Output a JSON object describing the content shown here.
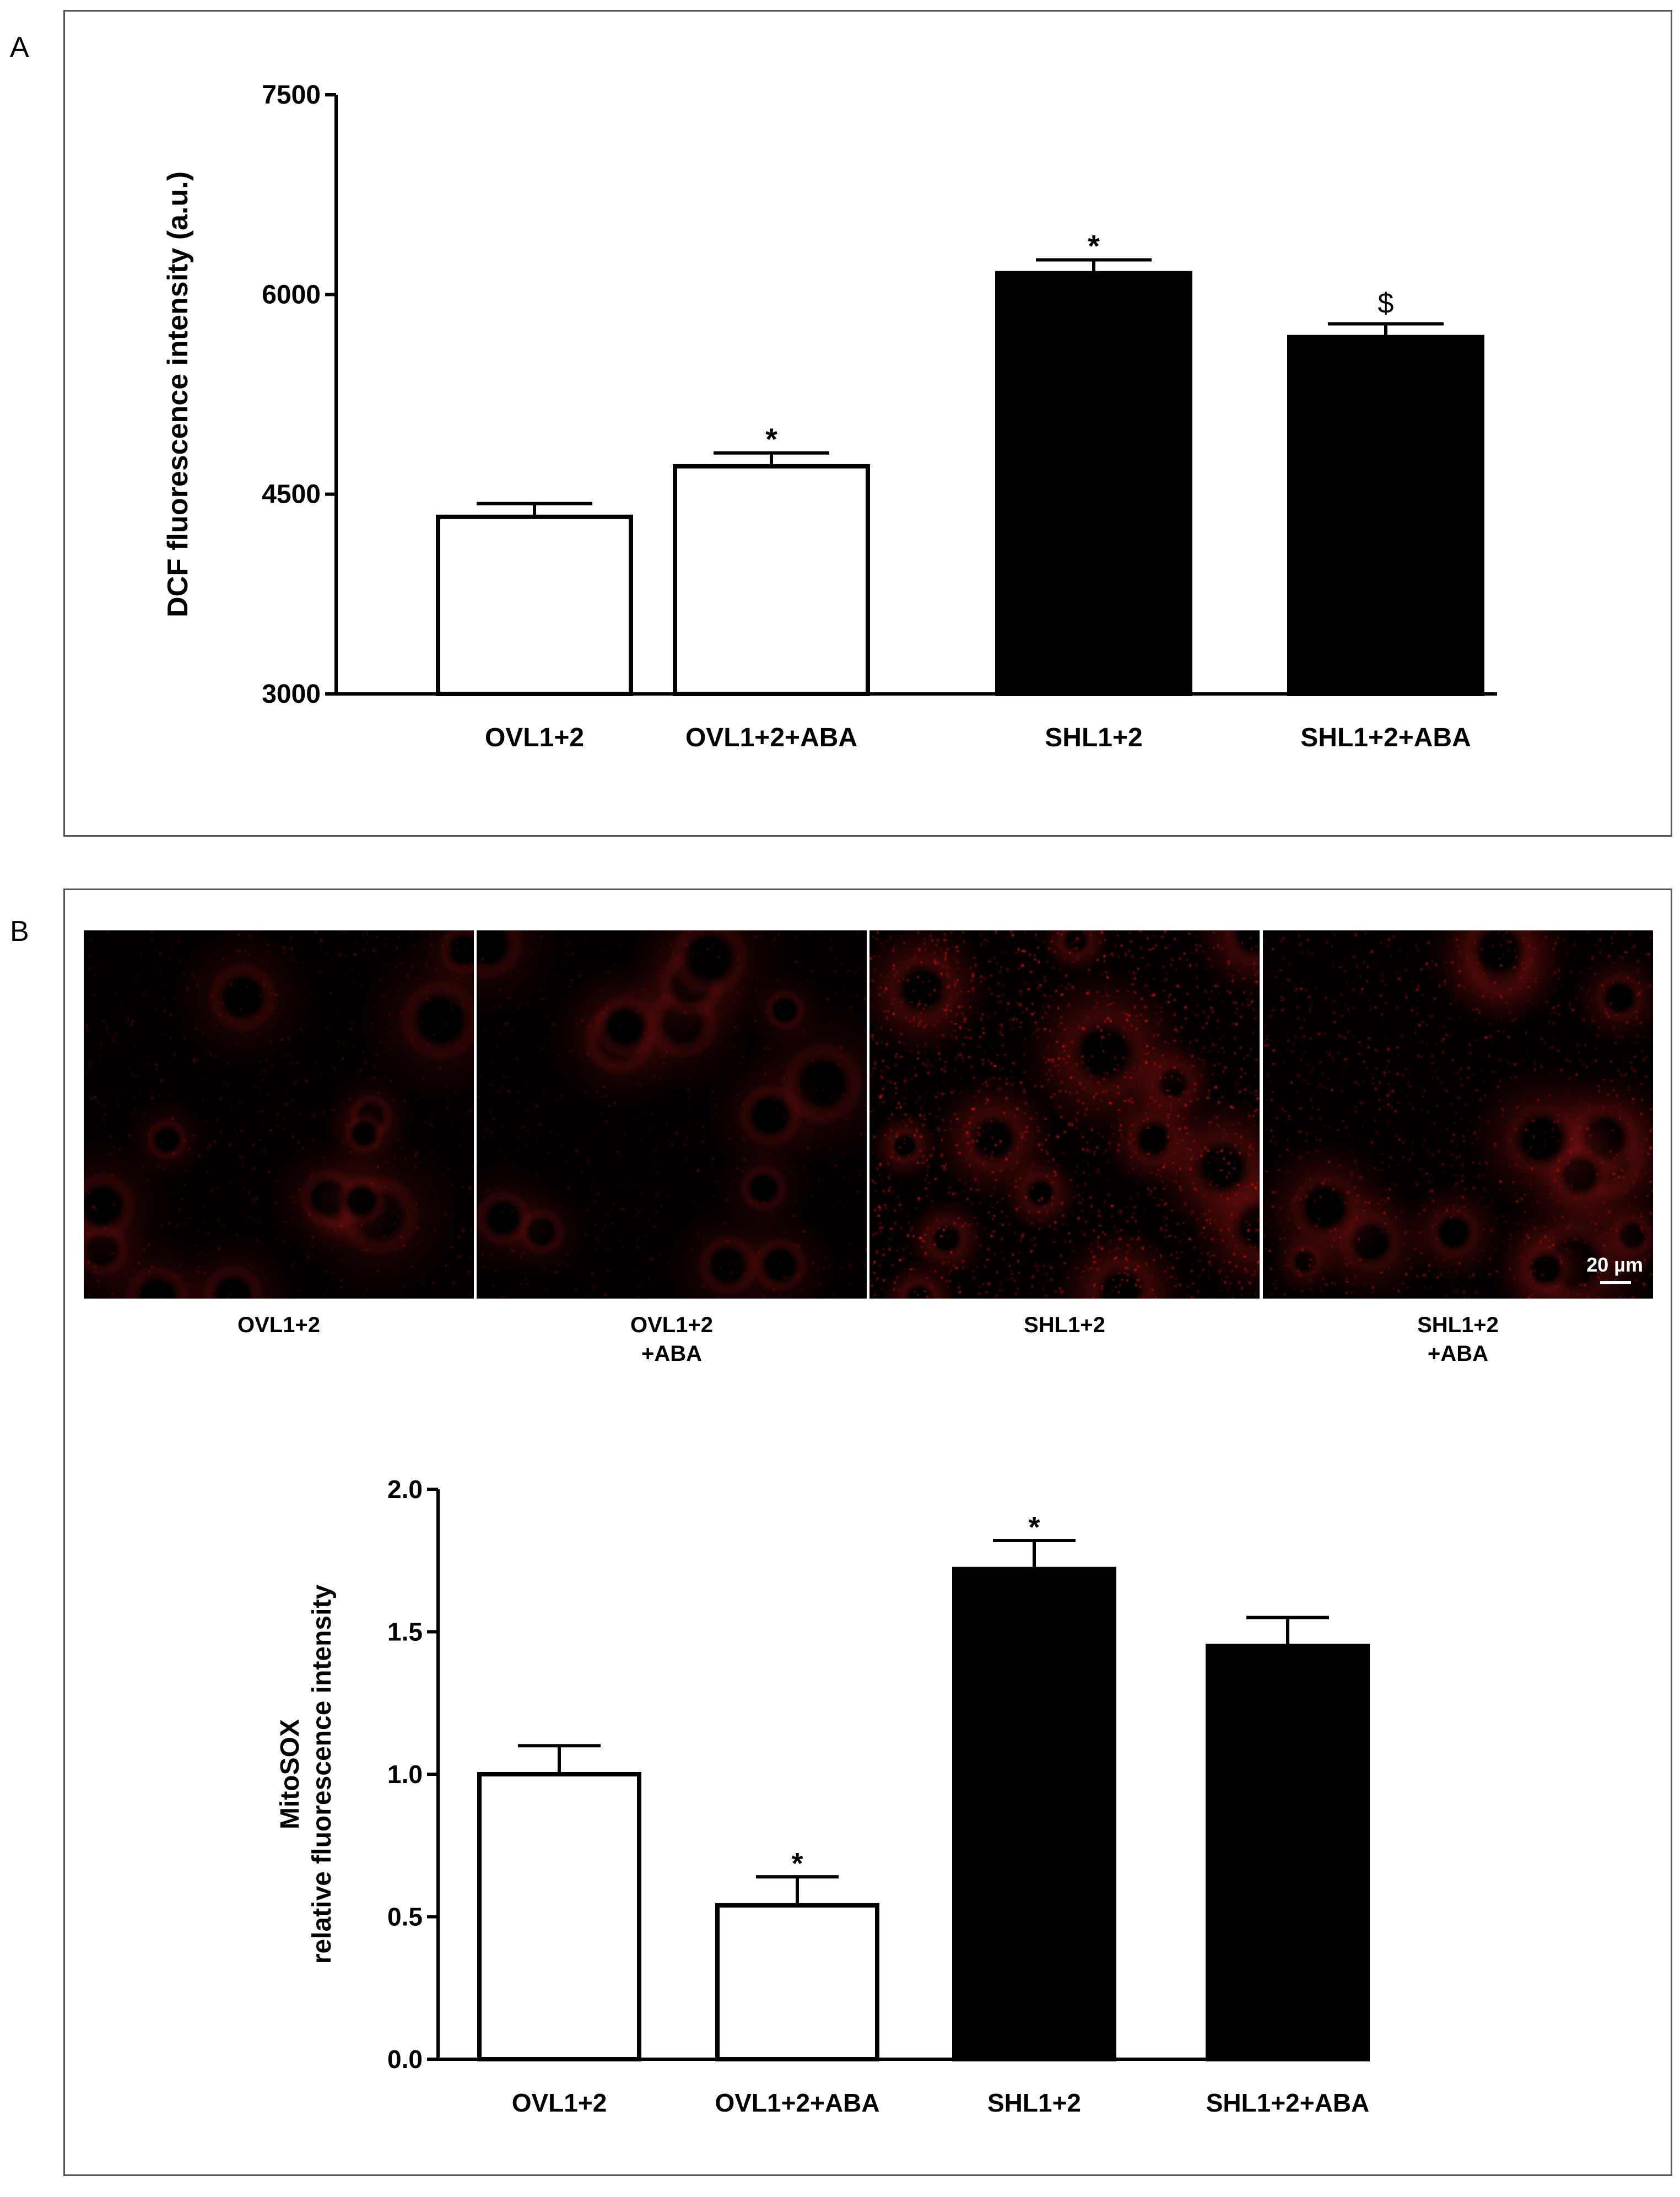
{
  "panels": {
    "a_letter": "A",
    "b_letter": "B"
  },
  "colors": {
    "ov_bar_fill": "#ffffff",
    "sh_bar_fill": "#000000",
    "bar_stroke": "#000000",
    "fluorescence_red": "#d42020",
    "micro_background": "#050000"
  },
  "chart_data": [
    {
      "id": "dcf",
      "type": "bar",
      "title": "",
      "xlabel": "",
      "ylabel": "DCF fluorescence intensity (a.u.)",
      "ylim": [
        3000,
        7500
      ],
      "yticks": [
        "3000",
        "4500",
        "6000",
        "7500"
      ],
      "categories": [
        "OVL1+2",
        "OVL1+2+ABA",
        "SHL1+2",
        "SHL1+2+ABA"
      ],
      "values": [
        4330,
        4710,
        6160,
        5680
      ],
      "errors": [
        100,
        100,
        100,
        100
      ],
      "annotations": [
        "",
        "*",
        "*",
        "$"
      ],
      "bar_colors": [
        "ov",
        "ov",
        "sh",
        "sh"
      ],
      "grid": false,
      "legend": "none"
    },
    {
      "id": "mitosox",
      "type": "bar",
      "title": "",
      "xlabel": "",
      "ylabel": [
        "MitoSOX",
        "relative fluorescence intensity"
      ],
      "ylim": [
        0.0,
        2.0
      ],
      "yticks": [
        "0.0",
        "0.5",
        "1.0",
        "1.5",
        "2.0"
      ],
      "categories": [
        "OVL1+2",
        "OVL1+2+ABA",
        "SHL1+2",
        "SHL1+2+ABA"
      ],
      "values": [
        1.0,
        0.54,
        1.72,
        1.45
      ],
      "errors": [
        0.1,
        0.1,
        0.1,
        0.1
      ],
      "annotations": [
        "",
        "*",
        "*",
        ""
      ],
      "bar_colors": [
        "ov",
        "ov",
        "sh",
        "sh"
      ],
      "grid": false,
      "legend": "none"
    }
  ],
  "micrographs": {
    "labels": [
      "OVL1+2",
      "OVL1+2\n+ABA",
      "SHL1+2",
      "SHL1+2\n+ABA"
    ],
    "intensity": [
      0.35,
      0.3,
      0.85,
      0.6
    ],
    "scale_bar": "20 µm"
  }
}
